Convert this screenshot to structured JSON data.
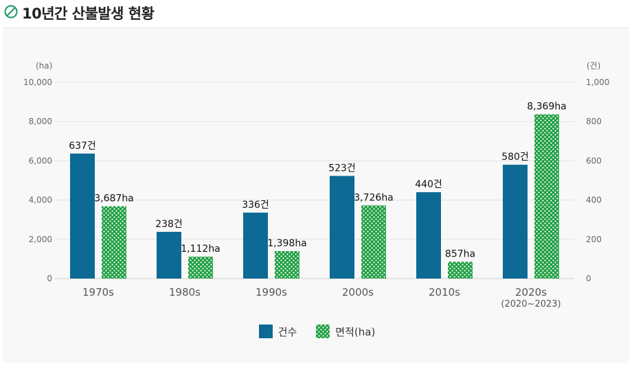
{
  "title": "10년간 산불발생 현황",
  "icon": "leaf-icon",
  "colors": {
    "count": "#0c6a94",
    "area": "#1e9f41",
    "title_icon": "#2a9d6a"
  },
  "chart_data": {
    "type": "bar",
    "categories": [
      "1970s",
      "1980s",
      "1990s",
      "2000s",
      "2010s",
      "2020s\n(2020~2023)"
    ],
    "series": [
      {
        "name": "건수",
        "values": [
          637,
          238,
          336,
          523,
          440,
          580
        ],
        "labels": [
          "637건",
          "238건",
          "336건",
          "523건",
          "440건",
          "580건"
        ],
        "axis": "right"
      },
      {
        "name": "면적(ha)",
        "values": [
          3687,
          1112,
          1398,
          3726,
          857,
          8369
        ],
        "labels": [
          "3,687ha",
          "1,112ha",
          "1,398ha",
          "3,726ha",
          "857ha",
          "8,369ha"
        ],
        "axis": "left"
      }
    ],
    "y_left": {
      "unit": "(ha)",
      "ticks": [
        "0",
        "2,000",
        "4,000",
        "6,000",
        "8,000",
        "10,000"
      ],
      "range": [
        0,
        10000
      ]
    },
    "y_right": {
      "unit": "(건)",
      "ticks": [
        "0",
        "200",
        "400",
        "600",
        "800",
        "1,000"
      ],
      "range": [
        0,
        1000
      ]
    },
    "grid": true,
    "legend_position": "bottom-center"
  }
}
